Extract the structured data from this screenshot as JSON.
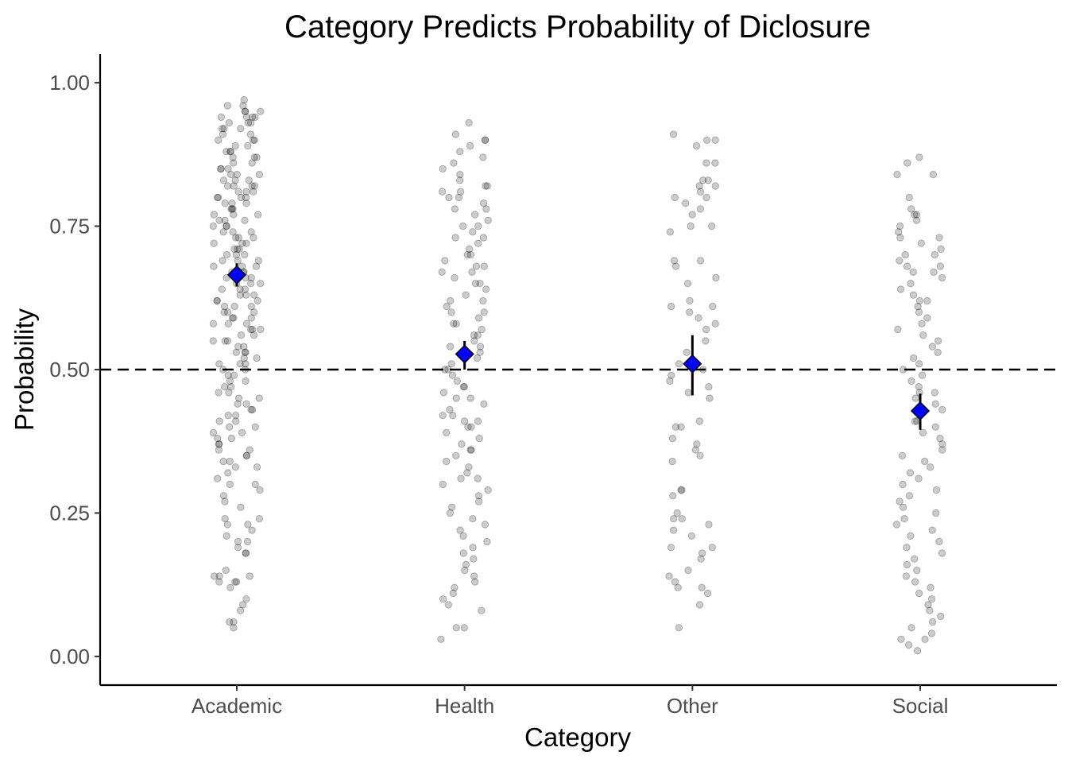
{
  "chart_data": {
    "type": "scatter",
    "title": "Category Predicts Probability of Diclosure",
    "xlabel": "Category",
    "ylabel": "Probability",
    "categories": [
      "Academic",
      "Health",
      "Other",
      "Social"
    ],
    "ylim": [
      -0.05,
      1.05
    ],
    "y_ticks": [
      0.0,
      0.25,
      0.5,
      0.75,
      1.0
    ],
    "y_tick_labels": [
      "0.00",
      "0.25",
      "0.50",
      "0.75",
      "1.00"
    ],
    "reference_line": {
      "y": 0.5,
      "style": "dashed"
    },
    "grid": false,
    "legend": "none",
    "point_color": "#000000",
    "point_alpha": 0.2,
    "summary_color": "#0000ff",
    "summary": [
      {
        "category": "Academic",
        "mean": 0.665,
        "lower": 0.645,
        "upper": 0.685
      },
      {
        "category": "Health",
        "mean": 0.527,
        "lower": 0.5,
        "upper": 0.55
      },
      {
        "category": "Other",
        "mean": 0.51,
        "lower": 0.455,
        "upper": 0.56
      },
      {
        "category": "Social",
        "mean": 0.428,
        "lower": 0.395,
        "upper": 0.458
      }
    ],
    "points": [
      {
        "category": "Academic",
        "y": [
          0.97,
          0.96,
          0.96,
          0.95,
          0.95,
          0.95,
          0.94,
          0.94,
          0.94,
          0.94,
          0.93,
          0.93,
          0.93,
          0.92,
          0.92,
          0.92,
          0.91,
          0.91,
          0.9,
          0.9,
          0.9,
          0.89,
          0.89,
          0.88,
          0.88,
          0.88,
          0.87,
          0.87,
          0.87,
          0.86,
          0.86,
          0.85,
          0.85,
          0.85,
          0.84,
          0.84,
          0.84,
          0.83,
          0.83,
          0.83,
          0.82,
          0.82,
          0.82,
          0.82,
          0.81,
          0.81,
          0.81,
          0.8,
          0.8,
          0.8,
          0.8,
          0.79,
          0.79,
          0.79,
          0.78,
          0.78,
          0.78,
          0.77,
          0.77,
          0.77,
          0.76,
          0.76,
          0.76,
          0.75,
          0.75,
          0.75,
          0.74,
          0.74,
          0.74,
          0.73,
          0.73,
          0.73,
          0.72,
          0.72,
          0.72,
          0.71,
          0.71,
          0.71,
          0.7,
          0.7,
          0.7,
          0.69,
          0.69,
          0.69,
          0.68,
          0.68,
          0.68,
          0.67,
          0.67,
          0.67,
          0.66,
          0.66,
          0.66,
          0.65,
          0.65,
          0.65,
          0.64,
          0.64,
          0.64,
          0.63,
          0.63,
          0.63,
          0.62,
          0.62,
          0.62,
          0.61,
          0.61,
          0.61,
          0.6,
          0.6,
          0.6,
          0.59,
          0.59,
          0.59,
          0.58,
          0.58,
          0.58,
          0.57,
          0.57,
          0.57,
          0.56,
          0.56,
          0.55,
          0.55,
          0.55,
          0.54,
          0.54,
          0.53,
          0.53,
          0.53,
          0.52,
          0.52,
          0.51,
          0.51,
          0.51,
          0.5,
          0.5,
          0.49,
          0.49,
          0.48,
          0.48,
          0.47,
          0.47,
          0.46,
          0.46,
          0.45,
          0.45,
          0.44,
          0.44,
          0.43,
          0.43,
          0.42,
          0.42,
          0.41,
          0.41,
          0.4,
          0.4,
          0.39,
          0.39,
          0.38,
          0.38,
          0.37,
          0.37,
          0.36,
          0.36,
          0.35,
          0.35,
          0.34,
          0.34,
          0.33,
          0.33,
          0.32,
          0.31,
          0.3,
          0.3,
          0.29,
          0.28,
          0.27,
          0.26,
          0.24,
          0.24,
          0.23,
          0.23,
          0.22,
          0.21,
          0.2,
          0.2,
          0.19,
          0.18,
          0.18,
          0.15,
          0.14,
          0.14,
          0.14,
          0.13,
          0.13,
          0.13,
          0.12,
          0.1,
          0.09,
          0.08,
          0.06,
          0.06,
          0.05
        ]
      },
      {
        "category": "Health",
        "y": [
          0.93,
          0.91,
          0.9,
          0.9,
          0.89,
          0.88,
          0.87,
          0.86,
          0.85,
          0.84,
          0.83,
          0.82,
          0.82,
          0.81,
          0.81,
          0.8,
          0.8,
          0.79,
          0.78,
          0.78,
          0.77,
          0.76,
          0.75,
          0.75,
          0.74,
          0.73,
          0.73,
          0.72,
          0.71,
          0.7,
          0.7,
          0.69,
          0.68,
          0.68,
          0.67,
          0.67,
          0.66,
          0.65,
          0.65,
          0.64,
          0.63,
          0.62,
          0.62,
          0.61,
          0.6,
          0.6,
          0.59,
          0.58,
          0.58,
          0.57,
          0.56,
          0.56,
          0.55,
          0.54,
          0.54,
          0.53,
          0.52,
          0.51,
          0.5,
          0.5,
          0.49,
          0.48,
          0.47,
          0.47,
          0.46,
          0.45,
          0.45,
          0.44,
          0.43,
          0.42,
          0.42,
          0.41,
          0.41,
          0.4,
          0.4,
          0.39,
          0.38,
          0.37,
          0.36,
          0.36,
          0.35,
          0.34,
          0.33,
          0.32,
          0.31,
          0.31,
          0.3,
          0.29,
          0.28,
          0.27,
          0.26,
          0.25,
          0.24,
          0.23,
          0.22,
          0.21,
          0.2,
          0.19,
          0.18,
          0.17,
          0.16,
          0.15,
          0.14,
          0.13,
          0.12,
          0.11,
          0.1,
          0.09,
          0.08,
          0.05,
          0.05,
          0.03
        ]
      },
      {
        "category": "Other",
        "y": [
          0.91,
          0.9,
          0.9,
          0.89,
          0.86,
          0.86,
          0.83,
          0.83,
          0.82,
          0.82,
          0.81,
          0.8,
          0.8,
          0.79,
          0.78,
          0.77,
          0.75,
          0.75,
          0.74,
          0.69,
          0.69,
          0.68,
          0.66,
          0.65,
          0.62,
          0.61,
          0.61,
          0.6,
          0.59,
          0.58,
          0.57,
          0.55,
          0.53,
          0.51,
          0.5,
          0.49,
          0.48,
          0.47,
          0.46,
          0.45,
          0.41,
          0.4,
          0.4,
          0.38,
          0.37,
          0.36,
          0.35,
          0.34,
          0.29,
          0.29,
          0.28,
          0.25,
          0.24,
          0.24,
          0.23,
          0.22,
          0.21,
          0.19,
          0.19,
          0.18,
          0.17,
          0.15,
          0.14,
          0.13,
          0.12,
          0.12,
          0.11,
          0.09,
          0.05
        ]
      },
      {
        "category": "Social",
        "y": [
          0.87,
          0.86,
          0.84,
          0.84,
          0.8,
          0.78,
          0.77,
          0.77,
          0.76,
          0.75,
          0.74,
          0.73,
          0.73,
          0.72,
          0.71,
          0.7,
          0.7,
          0.69,
          0.68,
          0.68,
          0.67,
          0.67,
          0.66,
          0.65,
          0.64,
          0.63,
          0.62,
          0.62,
          0.61,
          0.6,
          0.59,
          0.58,
          0.57,
          0.56,
          0.55,
          0.54,
          0.53,
          0.52,
          0.51,
          0.5,
          0.49,
          0.48,
          0.47,
          0.46,
          0.46,
          0.45,
          0.44,
          0.43,
          0.42,
          0.41,
          0.41,
          0.4,
          0.39,
          0.38,
          0.37,
          0.36,
          0.35,
          0.34,
          0.33,
          0.32,
          0.31,
          0.3,
          0.29,
          0.28,
          0.27,
          0.26,
          0.25,
          0.24,
          0.23,
          0.22,
          0.21,
          0.2,
          0.19,
          0.18,
          0.17,
          0.16,
          0.15,
          0.14,
          0.13,
          0.12,
          0.11,
          0.1,
          0.09,
          0.08,
          0.07,
          0.06,
          0.05,
          0.04,
          0.03,
          0.03,
          0.02,
          0.01
        ]
      }
    ]
  }
}
